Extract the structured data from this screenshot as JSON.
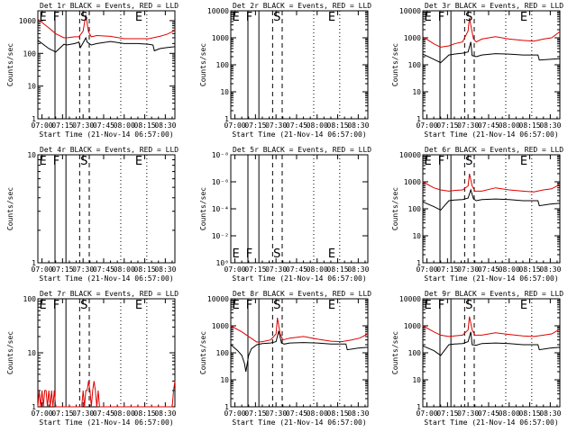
{
  "chart_data": [
    {
      "type": "line",
      "title": "Det 1r BLACK = Events, RED = LLD",
      "xlabel": "Start Time (21-Nov-14 06:57:00)",
      "ylabel": "Counts/sec",
      "scale": "log",
      "yticks": [
        "1",
        "10",
        "100",
        "1000"
      ],
      "ylim": [
        1,
        2000
      ],
      "xlim": [
        "06:57",
        "08:37"
      ],
      "xticks": [
        "07:00",
        "07:15",
        "07:30",
        "07:45",
        "08:00",
        "08:15",
        "08:30"
      ],
      "markers": [
        "E",
        "F",
        "S",
        "E"
      ],
      "series": [
        {
          "name": "Events",
          "color": "#000000",
          "x": [
            "06:57",
            "07:05",
            "07:10",
            "07:16",
            "07:18",
            "07:24",
            "07:27",
            "07:28",
            "07:30",
            "07:32",
            "07:33",
            "07:36",
            "07:40",
            "07:50",
            "08:00",
            "08:10",
            "08:18",
            "08:21",
            "08:22",
            "08:26",
            "08:31",
            "08:37"
          ],
          "values": [
            250,
            140,
            110,
            190,
            180,
            200,
            220,
            150,
            210,
            300,
            220,
            180,
            200,
            230,
            200,
            200,
            190,
            180,
            120,
            140,
            150,
            160
          ]
        },
        {
          "name": "LLD",
          "color": "#e00000",
          "x": [
            "06:57",
            "07:05",
            "07:10",
            "07:16",
            "07:18",
            "07:24",
            "07:27",
            "07:30",
            "07:32",
            "07:34",
            "07:36",
            "07:40",
            "07:50",
            "08:00",
            "08:10",
            "08:18",
            "08:21",
            "08:26",
            "08:31",
            "08:37"
          ],
          "values": [
            1100,
            600,
            400,
            300,
            300,
            320,
            320,
            480,
            1500,
            450,
            320,
            350,
            330,
            280,
            280,
            280,
            300,
            330,
            380,
            500
          ]
        }
      ]
    },
    {
      "type": "line",
      "title": "Det 2r BLACK = Events, RED = LLD",
      "xlabel": "Start Time (21-Nov-14 06:57:00)",
      "ylabel": "Counts/sec",
      "scale": "log",
      "yticks": [
        "1",
        "10",
        "100",
        "1000",
        "10000"
      ],
      "ylim": [
        1,
        10000
      ],
      "xlim": [
        "06:57",
        "08:37"
      ],
      "xticks": [
        "07:00",
        "07:15",
        "07:30",
        "07:45",
        "08:00",
        "08:15",
        "08:30"
      ],
      "markers": [
        "E",
        "F",
        "S",
        "E"
      ],
      "series": []
    },
    {
      "type": "line",
      "title": "Det 3r BLACK = Events, RED = LLD",
      "xlabel": "Start Time (21-Nov-14 06:57:00)",
      "ylabel": "Counts/sec",
      "scale": "log",
      "yticks": [
        "1",
        "10",
        "100",
        "1000",
        "10000"
      ],
      "ylim": [
        1,
        10000
      ],
      "xlim": [
        "06:57",
        "08:37"
      ],
      "xticks": [
        "07:00",
        "07:15",
        "07:30",
        "07:45",
        "08:00",
        "08:15",
        "08:30"
      ],
      "markers": [
        "E",
        "F",
        "S",
        "E"
      ],
      "series": [
        {
          "name": "Events",
          "color": "#000000",
          "x": [
            "06:57",
            "07:05",
            "07:10",
            "07:16",
            "07:20",
            "07:26",
            "07:30",
            "07:32",
            "07:33",
            "07:36",
            "07:40",
            "07:50",
            "08:00",
            "08:10",
            "08:18",
            "08:21",
            "08:22",
            "08:30",
            "08:37"
          ],
          "values": [
            250,
            160,
            120,
            230,
            250,
            270,
            300,
            700,
            220,
            200,
            230,
            260,
            250,
            230,
            230,
            230,
            150,
            160,
            170
          ]
        },
        {
          "name": "LLD",
          "color": "#e00000",
          "x": [
            "06:57",
            "07:05",
            "07:10",
            "07:16",
            "07:20",
            "07:26",
            "07:30",
            "07:31",
            "07:33",
            "07:34",
            "07:36",
            "07:40",
            "07:50",
            "08:00",
            "08:10",
            "08:18",
            "08:25",
            "08:31",
            "08:37"
          ],
          "values": [
            1100,
            600,
            450,
            500,
            600,
            700,
            1800,
            5500,
            1600,
            900,
            700,
            900,
            1100,
            900,
            800,
            750,
            900,
            1000,
            1700
          ]
        }
      ]
    },
    {
      "type": "line",
      "title": "Det 4r BLACK = Events, RED = LLD",
      "xlabel": "Start Time (21-Nov-14 06:57:00)",
      "ylabel": "Counts/sec",
      "scale": "log",
      "yticks": [
        "1",
        "10"
      ],
      "ylim": [
        1,
        10
      ],
      "xlim": [
        "06:57",
        "08:37"
      ],
      "xticks": [
        "07:00",
        "07:15",
        "07:30",
        "07:45",
        "08:00",
        "08:15",
        "08:30"
      ],
      "markers": [
        "E",
        "F",
        "S",
        "E"
      ],
      "series": []
    },
    {
      "type": "line",
      "title": "Det 5r BLACK = Events, RED = LLD",
      "xlabel": "Start Time (21-Nov-14 06:57:00)",
      "ylabel": "Counts/sec",
      "scale": "log",
      "yticks": [
        "10⁰",
        "10⁻²",
        "10⁻⁴",
        "10⁻⁶",
        "10⁻⁸"
      ],
      "ylim": [
        -8,
        0
      ],
      "xlim": [
        "06:57",
        "08:37"
      ],
      "xticks": [
        "07:00",
        "07:15",
        "07:30",
        "07:45",
        "08:00",
        "08:15",
        "08:30"
      ],
      "markers": [
        "E",
        "F",
        "S",
        "E"
      ],
      "series": []
    },
    {
      "type": "line",
      "title": "Det 6r BLACK = Events, RED = LLD",
      "xlabel": "Start Time (21-Nov-14 06:57:00)",
      "ylabel": "Counts/sec",
      "scale": "log",
      "yticks": [
        "1",
        "10",
        "100",
        "1000",
        "10000"
      ],
      "ylim": [
        1,
        10000
      ],
      "xlim": [
        "06:57",
        "08:37"
      ],
      "xticks": [
        "07:00",
        "07:15",
        "07:30",
        "07:45",
        "08:00",
        "08:15",
        "08:30"
      ],
      "markers": [
        "E",
        "F",
        "S",
        "E"
      ],
      "series": [
        {
          "name": "Events",
          "color": "#000000",
          "x": [
            "06:57",
            "07:05",
            "07:10",
            "07:16",
            "07:20",
            "07:26",
            "07:30",
            "07:32",
            "07:34",
            "07:36",
            "07:40",
            "07:50",
            "08:00",
            "08:10",
            "08:18",
            "08:21",
            "08:22",
            "08:30",
            "08:37"
          ],
          "values": [
            180,
            120,
            90,
            200,
            210,
            220,
            250,
            500,
            230,
            200,
            220,
            230,
            220,
            200,
            200,
            200,
            130,
            150,
            160
          ]
        },
        {
          "name": "LLD",
          "color": "#e00000",
          "x": [
            "06:57",
            "07:05",
            "07:10",
            "07:16",
            "07:20",
            "07:26",
            "07:30",
            "07:31",
            "07:33",
            "07:35",
            "07:40",
            "07:50",
            "08:00",
            "08:10",
            "08:18",
            "08:25",
            "08:31",
            "08:37"
          ],
          "values": [
            1000,
            600,
            500,
            450,
            480,
            500,
            700,
            2000,
            700,
            450,
            450,
            600,
            500,
            450,
            420,
            500,
            550,
            800
          ]
        }
      ]
    },
    {
      "type": "line",
      "title": "Det 7r BLACK = Events, RED = LLD",
      "xlabel": "Start Time (21-Nov-14 06:57:00)",
      "ylabel": "Counts/sec",
      "scale": "log",
      "yticks": [
        "1",
        "10",
        "100"
      ],
      "ylim": [
        1,
        100
      ],
      "xlim": [
        "06:57",
        "08:37"
      ],
      "xticks": [
        "07:00",
        "07:15",
        "07:30",
        "07:45",
        "08:00",
        "08:15",
        "08:30"
      ],
      "markers": [
        "E",
        "F",
        "S",
        "E"
      ],
      "series": [
        {
          "name": "LLD",
          "color": "#e00000",
          "x": [
            "06:57",
            "06:58",
            "06:59",
            "07:00",
            "07:01",
            "07:02",
            "07:03",
            "07:04",
            "07:05",
            "07:06",
            "07:07",
            "07:08",
            "07:09",
            "07:10",
            "07:29",
            "07:30",
            "07:31",
            "07:32",
            "07:33",
            "07:34",
            "07:35",
            "07:36",
            "07:37",
            "07:38",
            "07:39",
            "07:40",
            "07:41",
            "07:42",
            "07:43",
            "08:35",
            "08:36",
            "08:37"
          ],
          "values": [
            1,
            2,
            1,
            2,
            1,
            2,
            2,
            1,
            2,
            1,
            2,
            1,
            2,
            1,
            1,
            2,
            1,
            2,
            2,
            3,
            2,
            1,
            2,
            3,
            2,
            1,
            2,
            1,
            1,
            1,
            2,
            3
          ]
        }
      ]
    },
    {
      "type": "line",
      "title": "Det 8r BLACK = Events, RED = LLD",
      "xlabel": "Start Time (21-Nov-14 06:57:00)",
      "ylabel": "Counts/sec",
      "scale": "log",
      "yticks": [
        "1",
        "10",
        "100",
        "1000",
        "10000"
      ],
      "ylim": [
        1,
        10000
      ],
      "xlim": [
        "06:57",
        "08:37"
      ],
      "xticks": [
        "07:00",
        "07:15",
        "07:30",
        "07:45",
        "08:00",
        "08:15",
        "08:30"
      ],
      "markers": [
        "E",
        "F",
        "S",
        "E"
      ],
      "series": [
        {
          "name": "Events",
          "color": "#000000",
          "x": [
            "06:57",
            "07:02",
            "07:05",
            "07:07",
            "07:08",
            "07:10",
            "07:12",
            "07:16",
            "07:20",
            "07:26",
            "07:30",
            "07:32",
            "07:34",
            "07:36",
            "07:40",
            "07:50",
            "08:00",
            "08:10",
            "08:18",
            "08:21",
            "08:22",
            "08:30",
            "08:37"
          ],
          "values": [
            200,
            120,
            80,
            40,
            20,
            80,
            140,
            200,
            220,
            230,
            260,
            650,
            230,
            210,
            230,
            240,
            230,
            210,
            210,
            210,
            130,
            150,
            160
          ]
        },
        {
          "name": "LLD",
          "color": "#e00000",
          "x": [
            "06:57",
            "07:05",
            "07:10",
            "07:16",
            "07:20",
            "07:26",
            "07:30",
            "07:31",
            "07:33",
            "07:35",
            "07:40",
            "07:50",
            "08:00",
            "08:10",
            "08:18",
            "08:25",
            "08:31",
            "08:37"
          ],
          "values": [
            1000,
            600,
            400,
            250,
            260,
            300,
            500,
            2000,
            500,
            300,
            350,
            400,
            320,
            270,
            260,
            300,
            350,
            500
          ]
        }
      ]
    },
    {
      "type": "line",
      "title": "Det 9r BLACK = Events, RED = LLD",
      "xlabel": "Start Time (21-Nov-14 06:57:00)",
      "ylabel": "Counts/sec",
      "scale": "log",
      "yticks": [
        "1",
        "10",
        "100",
        "1000",
        "10000"
      ],
      "ylim": [
        1,
        10000
      ],
      "xlim": [
        "06:57",
        "08:37"
      ],
      "xticks": [
        "07:00",
        "07:15",
        "07:30",
        "07:45",
        "08:00",
        "08:15",
        "08:30"
      ],
      "markers": [
        "E",
        "F",
        "S",
        "E"
      ],
      "series": [
        {
          "name": "Events",
          "color": "#000000",
          "x": [
            "06:57",
            "07:05",
            "07:10",
            "07:16",
            "07:20",
            "07:26",
            "07:30",
            "07:32",
            "07:33",
            "07:36",
            "07:40",
            "07:50",
            "08:00",
            "08:10",
            "08:18",
            "08:21",
            "08:22",
            "08:30",
            "08:37"
          ],
          "values": [
            180,
            120,
            80,
            200,
            210,
            220,
            260,
            600,
            200,
            190,
            220,
            230,
            220,
            200,
            200,
            200,
            130,
            150,
            160
          ]
        },
        {
          "name": "LLD",
          "color": "#e00000",
          "x": [
            "06:57",
            "07:05",
            "07:10",
            "07:16",
            "07:20",
            "07:26",
            "07:30",
            "07:31",
            "07:33",
            "07:35",
            "07:40",
            "07:50",
            "08:00",
            "08:10",
            "08:18",
            "08:25",
            "08:31",
            "08:37"
          ],
          "values": [
            1000,
            600,
            450,
            400,
            420,
            450,
            700,
            2200,
            700,
            450,
            450,
            550,
            480,
            420,
            400,
            450,
            500,
            750
          ]
        }
      ]
    }
  ]
}
